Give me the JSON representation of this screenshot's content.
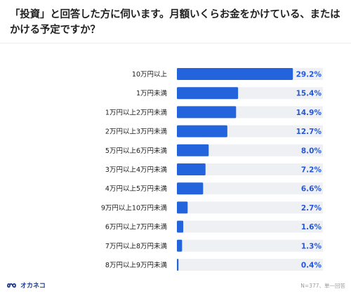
{
  "header": {
    "question": "「投資」と回答した方に伺います。月額いくらお金をかけている、またはかける予定ですか？"
  },
  "chart_data": {
    "type": "bar",
    "orientation": "horizontal",
    "title": "",
    "xlabel": "",
    "ylabel": "",
    "xlim": [
      0,
      100
    ],
    "grid": false,
    "value_suffix": "%",
    "colors": {
      "bar": "#2363dc",
      "track": "#eef0f3",
      "label": "#2457d9"
    },
    "categories": [
      "10万円以上",
      "1万円未満",
      "1万円以上2万円未満",
      "2万円以上3万円未満",
      "5万円以上6万円未満",
      "3万円以上4万円未満",
      "4万円以上5万円未満",
      "9万円以上10万円未満",
      "6万円以上7万円未満",
      "7万円以上8万円未満",
      "8万円以上9万円未満"
    ],
    "values": [
      29.2,
      15.4,
      14.9,
      12.7,
      8.0,
      7.2,
      6.6,
      2.7,
      1.6,
      1.3,
      0.4
    ],
    "value_labels": [
      "29.2%",
      "15.4%",
      "14.9%",
      "12.7%",
      "8.0%",
      "7.2%",
      "6.6%",
      "2.7%",
      "1.6%",
      "1.3%",
      "0.4%"
    ]
  },
  "footer": {
    "brand": "オカネコ",
    "note": "N=377、単一回答"
  }
}
